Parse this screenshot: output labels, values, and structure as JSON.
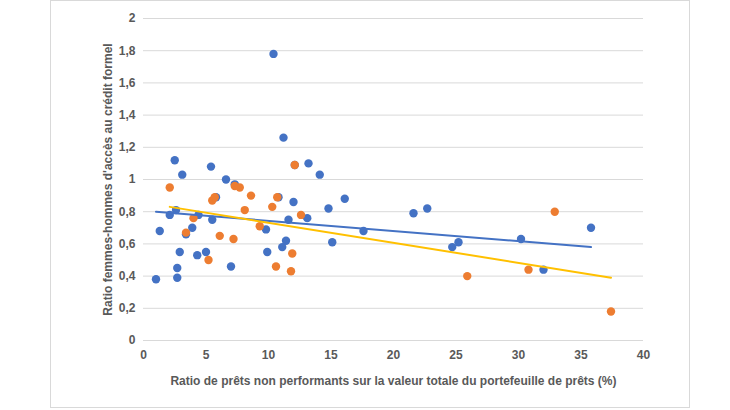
{
  "chart_data": {
    "type": "scatter",
    "x_label": "Ratio de prêts non performants sur la valeur totale du portefeuille de prêts (%)",
    "y_label": "Ratio femmes-hommes d'accès au crédit formel",
    "xlim": [
      0,
      40
    ],
    "xticks": [
      0,
      5,
      10,
      15,
      20,
      25,
      30,
      35,
      40
    ],
    "ylim": [
      0,
      2
    ],
    "yticks": [
      0,
      {
        "value": 0.2,
        "label": "0,2"
      },
      {
        "value": 0.4,
        "label": "0,4"
      },
      {
        "value": 0.6,
        "label": "0,6"
      },
      {
        "value": 0.8,
        "label": "0,8"
      },
      1,
      {
        "value": 1.2,
        "label": "1,2"
      },
      {
        "value": 1.4,
        "label": "1,4"
      },
      {
        "value": 1.6,
        "label": "1,6"
      },
      {
        "value": 1.8,
        "label": "1,8"
      },
      2
    ],
    "grid": true,
    "series": [
      {
        "type": "scatter",
        "color": "#4472C4",
        "x": [
          1.0,
          1.3,
          2.1,
          2.5,
          2.6,
          2.7,
          2.7,
          2.9,
          3.1,
          3.4,
          3.9,
          4.3,
          4.4,
          5.0,
          5.4,
          5.5,
          5.8,
          6.6,
          7.0,
          7.3,
          9.8,
          9.9,
          10.4,
          10.8,
          11.1,
          11.2,
          11.4,
          11.6,
          12.0,
          12.1,
          13.1,
          13.2,
          14.1,
          14.8,
          15.1,
          16.1,
          17.6,
          21.6,
          22.7,
          24.7,
          25.2,
          30.2,
          32.0,
          35.8
        ],
        "values": [
          0.38,
          0.68,
          0.78,
          1.12,
          0.81,
          0.45,
          0.39,
          0.55,
          1.03,
          0.66,
          0.7,
          0.53,
          0.78,
          0.55,
          1.08,
          0.75,
          0.89,
          1.0,
          0.46,
          0.97,
          0.69,
          0.55,
          1.78,
          0.89,
          0.58,
          1.26,
          0.62,
          0.75,
          0.86,
          1.09,
          0.76,
          1.1,
          1.03,
          0.82,
          0.61,
          0.88,
          0.68,
          0.79,
          0.82,
          0.58,
          0.61,
          0.63,
          0.44,
          0.7
        ]
      },
      {
        "type": "scatter",
        "color": "#ED7D31",
        "x": [
          2.1,
          3.4,
          4.0,
          5.2,
          5.5,
          5.7,
          6.1,
          7.2,
          7.3,
          7.7,
          8.1,
          8.6,
          9.3,
          10.3,
          10.6,
          10.7,
          11.8,
          11.9,
          12.1,
          12.6,
          25.9,
          30.8,
          32.9,
          37.4
        ],
        "values": [
          0.95,
          0.67,
          0.76,
          0.5,
          0.87,
          0.89,
          0.65,
          0.63,
          0.96,
          0.95,
          0.81,
          0.9,
          0.71,
          0.83,
          0.46,
          0.89,
          0.43,
          0.54,
          1.09,
          0.78,
          0.4,
          0.44,
          0.8,
          0.18
        ]
      },
      {
        "type": "line",
        "color": "#4472C4",
        "x": [
          1.0,
          35.8
        ],
        "values": [
          0.8,
          0.58
        ]
      },
      {
        "type": "line",
        "color": "#FFC000",
        "x": [
          2.1,
          37.4
        ],
        "values": [
          0.83,
          0.39
        ]
      }
    ]
  }
}
